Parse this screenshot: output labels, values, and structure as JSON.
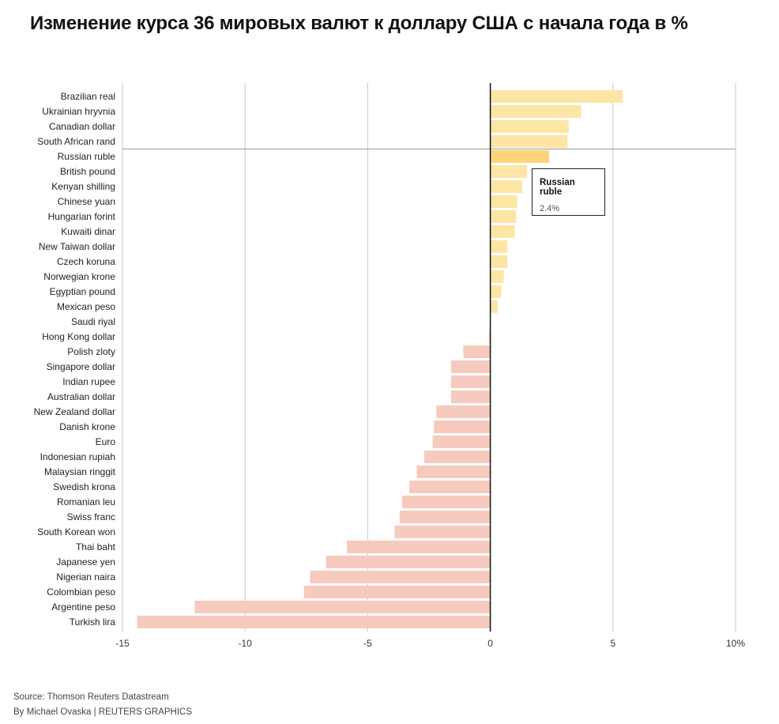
{
  "title": "Изменение курса 36 мировых валют к доллару США с начала года в %",
  "source": "Source: Thomson Reuters Datastream",
  "byline": "By Michael Ovaska | REUTERS GRAPHICS",
  "tooltip": {
    "name": "Russian ruble",
    "value": "2.4%"
  },
  "chart_data": {
    "type": "bar",
    "orientation": "horizontal",
    "title": "Изменение курса 36 мировых валют к доллару США с начала года в %",
    "xlim": [
      -15,
      10
    ],
    "xticks": [
      -15,
      -10,
      -5,
      0,
      5,
      10
    ],
    "xtick_labels": [
      "-15",
      "-10",
      "-5",
      "0",
      "5",
      "10%"
    ],
    "grid": "vertical",
    "highlight": "Russian ruble",
    "colors": {
      "positive": "#fde5a6",
      "negative": "#f6cabd",
      "highlight": "#fcd57a"
    },
    "categories": [
      "Brazilian real",
      "Ukrainian hryvnia",
      "Canadian dollar",
      "South African rand",
      "Russian ruble",
      "British pound",
      "Kenyan shilling",
      "Chinese yuan",
      "Hungarian forint",
      "Kuwaiti dinar",
      "New Taiwan dollar",
      "Czech koruna",
      "Norwegian krone",
      "Egyptian pound",
      "Mexican peso",
      "Saudi riyal",
      "Hong Kong dollar",
      "Polish zloty",
      "Singapore dollar",
      "Indian rupee",
      "Australian dollar",
      "New Zealand dollar",
      "Danish krone",
      "Euro",
      "Indonesian rupiah",
      "Malaysian ringgit",
      "Swedish krona",
      "Romanian leu",
      "Swiss franc",
      "South Korean won",
      "Thai baht",
      "Japanese yen",
      "Nigerian naira",
      "Colombian peso",
      "Argentine peso",
      "Turkish lira"
    ],
    "values": [
      5.4,
      3.7,
      3.2,
      3.15,
      2.4,
      1.5,
      1.3,
      1.1,
      1.05,
      1.0,
      0.7,
      0.7,
      0.55,
      0.45,
      0.3,
      0.0,
      -0.05,
      -1.1,
      -1.6,
      -1.6,
      -1.6,
      -2.2,
      -2.3,
      -2.35,
      -2.7,
      -3.0,
      -3.3,
      -3.6,
      -3.7,
      -3.9,
      -5.85,
      -6.7,
      -7.35,
      -7.6,
      -12.05,
      -14.4
    ]
  }
}
